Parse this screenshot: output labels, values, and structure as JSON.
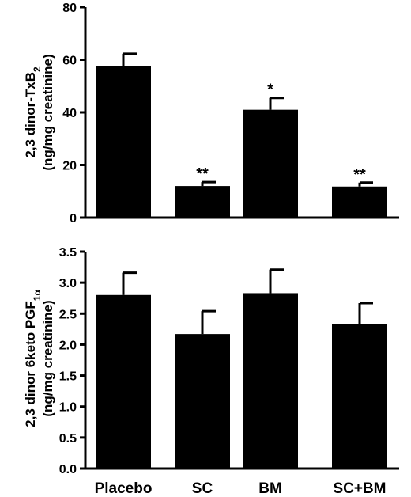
{
  "colors": {
    "bar": "#000000",
    "axis": "#000000",
    "background": "#ffffff"
  },
  "chart_data": [
    {
      "type": "bar",
      "categories": [
        "Placebo",
        "SC",
        "BM",
        "SC+BM"
      ],
      "values": [
        57.5,
        12,
        41,
        11.8
      ],
      "errors": [
        4.8,
        1.5,
        4.5,
        1.5
      ],
      "significance": [
        "",
        "**",
        "*",
        "**"
      ],
      "ylabel_line1": "2,3 dinor-TxB",
      "ylabel_sub": "2",
      "ylabel_line2": "(ng/mg creatinine)",
      "ylim": [
        0,
        80
      ],
      "yticks": [
        "0",
        "20",
        "40",
        "60",
        "80"
      ],
      "grid": false,
      "legend": "none"
    },
    {
      "type": "bar",
      "categories": [
        "Placebo",
        "SC",
        "BM",
        "SC+BM"
      ],
      "values": [
        2.8,
        2.17,
        2.83,
        2.33
      ],
      "errors": [
        0.36,
        0.37,
        0.38,
        0.34
      ],
      "significance": [
        "",
        "",
        "",
        ""
      ],
      "ylabel_line1": "2,3 dinor 6keto PGF",
      "ylabel_sub": "1α",
      "ylabel_line2": "(ng/mg creatinine)",
      "ylim": [
        0,
        3.5
      ],
      "yticks": [
        "0.0",
        "0.5",
        "1.0",
        "1.5",
        "2.0",
        "2.5",
        "3.0",
        "3.5"
      ],
      "grid": false,
      "legend": "none",
      "xtick_labels": [
        "Placebo",
        "SC",
        "BM",
        "SC+BM"
      ]
    }
  ]
}
